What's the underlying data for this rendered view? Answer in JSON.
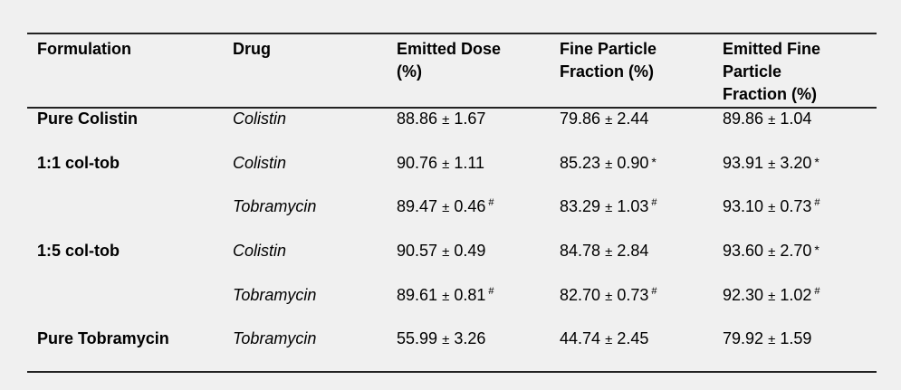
{
  "headers": [
    "Formulation",
    "Drug",
    "Emitted Dose\n(%)",
    "Fine Particle\nFraction (%)",
    "Emitted Fine\nParticle\nFraction (%)"
  ],
  "rows": [
    {
      "formulation": "Pure Colistin",
      "drug": "Colistin",
      "ed": {
        "mean": "88.86",
        "pm": "±",
        "sd": "1.67",
        "mark": ""
      },
      "fpf": {
        "mean": "79.86",
        "pm": "±",
        "sd": "2.44",
        "mark": ""
      },
      "efpf": {
        "mean": "89.86",
        "pm": "±",
        "sd": "1.04",
        "mark": ""
      }
    },
    {
      "formulation": "1:1 col-tob",
      "drug": "Colistin",
      "ed": {
        "mean": "90.76",
        "pm": "±",
        "sd": "1.11",
        "mark": ""
      },
      "fpf": {
        "mean": "85.23",
        "pm": "±",
        "sd": "0.90",
        "mark": "*"
      },
      "efpf": {
        "mean": "93.91",
        "pm": "±",
        "sd": "3.20",
        "mark": "*"
      }
    },
    {
      "formulation": "",
      "drug": "Tobramycin",
      "ed": {
        "mean": "89.47",
        "pm": "±",
        "sd": "0.46",
        "mark": "#"
      },
      "fpf": {
        "mean": "83.29",
        "pm": "±",
        "sd": "1.03",
        "mark": "#"
      },
      "efpf": {
        "mean": "93.10",
        "pm": "±",
        "sd": "0.73",
        "mark": "#"
      }
    },
    {
      "formulation": "1:5 col-tob",
      "drug": "Colistin",
      "ed": {
        "mean": "90.57",
        "pm": "±",
        "sd": "0.49",
        "mark": ""
      },
      "fpf": {
        "mean": "84.78",
        "pm": "±",
        "sd": "2.84",
        "mark": ""
      },
      "efpf": {
        "mean": "93.60",
        "pm": "±",
        "sd": "2.70",
        "mark": "*"
      }
    },
    {
      "formulation": "",
      "drug": "Tobramycin",
      "ed": {
        "mean": "89.61",
        "pm": "±",
        "sd": "0.81",
        "mark": "#"
      },
      "fpf": {
        "mean": "82.70",
        "pm": "±",
        "sd": "0.73",
        "mark": "#"
      },
      "efpf": {
        "mean": "92.30",
        "pm": "±",
        "sd": "1.02",
        "mark": "#"
      }
    },
    {
      "formulation": "Pure Tobramycin",
      "drug": "Tobramycin",
      "ed": {
        "mean": "55.99",
        "pm": "±",
        "sd": "3.26",
        "mark": ""
      },
      "fpf": {
        "mean": "44.74",
        "pm": "±",
        "sd": "2.45",
        "mark": ""
      },
      "efpf": {
        "mean": "79.92",
        "pm": "±",
        "sd": "1.59",
        "mark": ""
      }
    }
  ]
}
